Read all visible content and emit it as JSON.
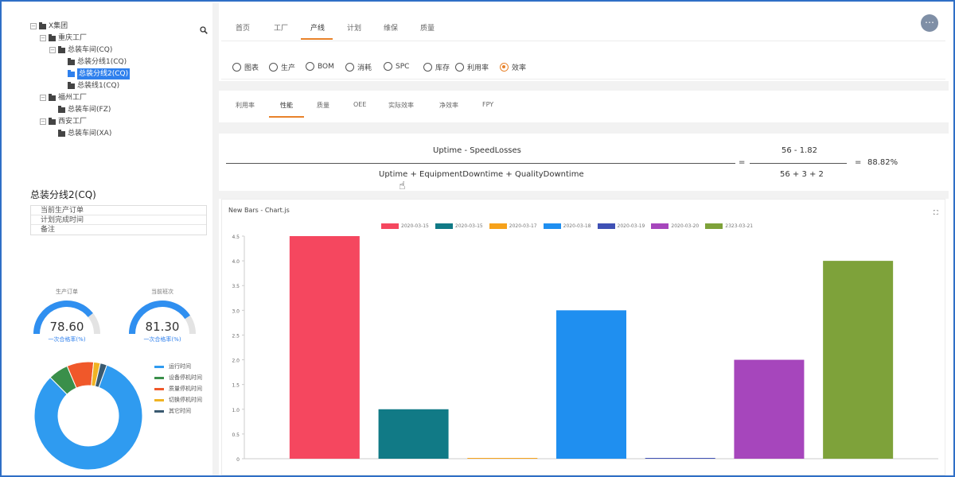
{
  "tree": [
    {
      "label": "X集团",
      "depth": 0,
      "toggle": "⊟"
    },
    {
      "label": "重庆工厂",
      "depth": 1,
      "toggle": "⊟"
    },
    {
      "label": "总装车间(CQ)",
      "depth": 2,
      "toggle": "⊟"
    },
    {
      "label": "总装分线1(CQ)",
      "depth": 3,
      "toggle": ""
    },
    {
      "label": "总装分线2(CQ)",
      "depth": 3,
      "toggle": "",
      "selected": true
    },
    {
      "label": "总装线1(CQ)",
      "depth": 3,
      "toggle": ""
    },
    {
      "label": "福州工厂",
      "depth": 1,
      "toggle": "⊟"
    },
    {
      "label": "总装车间(FZ)",
      "depth": 2,
      "toggle": ""
    },
    {
      "label": "西安工厂",
      "depth": 1,
      "toggle": "⊟"
    },
    {
      "label": "总装车间(XA)",
      "depth": 2,
      "toggle": ""
    }
  ],
  "left": {
    "line_title": "总装分线2(CQ)",
    "info_rows": [
      "当前生产订单",
      "计划完成时间",
      "备注"
    ],
    "gauges": [
      {
        "top_label": "生产订单",
        "value": "78.60",
        "bottom_label": "一次合格率(%)",
        "fraction": 0.786
      },
      {
        "top_label": "当前班次",
        "value": "81.30",
        "bottom_label": "一次合格率(%)",
        "fraction": 0.813
      }
    ],
    "donut_legend": [
      {
        "label": "运行时间",
        "color": "#2f9bf0"
      },
      {
        "label": "设备停机时间",
        "color": "#3a8f4a"
      },
      {
        "label": "质量停机时间",
        "color": "#f0582a"
      },
      {
        "label": "切换停机时间",
        "color": "#f0b323"
      },
      {
        "label": "其它时间",
        "color": "#3a5a70"
      }
    ],
    "donut_values": [
      82,
      6,
      8,
      2,
      2
    ]
  },
  "top_tabs": [
    "首页",
    "工厂",
    "产线",
    "计划",
    "维保",
    "质量"
  ],
  "top_tabs_active": 2,
  "radios": [
    {
      "label": "图表",
      "checked": false
    },
    {
      "label": "生产",
      "checked": false
    },
    {
      "label": "BOM",
      "checked": false
    },
    {
      "label": "消耗",
      "checked": false
    },
    {
      "label": "SPC",
      "checked": false
    },
    {
      "label": "库存",
      "checked": false
    },
    {
      "label": "利用率",
      "checked": false
    },
    {
      "label": "效率",
      "checked": true
    }
  ],
  "sub_tabs": [
    "利用率",
    "性能",
    "质量",
    "OEE",
    "实际效率",
    "净效率",
    "FPY"
  ],
  "sub_tabs_active": 1,
  "formula": {
    "numerator_text": "Uptime - SpeedLosses",
    "denominator_text": "Uptime + EquipmentDowntime + QualityDowntime",
    "eq1": "=",
    "numerator_val": "56 - 1.82",
    "denominator_val": "56 + 3 + 2",
    "eq2": "=",
    "result": "88.82%"
  },
  "chart_card": {
    "title": "New Bars - Chart.js",
    "expand_icon": "⛶"
  },
  "chart_data": {
    "type": "bar",
    "title": "New Bars - Chart.js",
    "series": [
      {
        "name": "2020-03-15",
        "value": 4.5,
        "color": "#f5475f"
      },
      {
        "name": "2020-03-15",
        "value": 1.0,
        "color": "#117a86"
      },
      {
        "name": "2020-03-17",
        "value": 0.0,
        "color": "#f6a21b"
      },
      {
        "name": "2020-03-18",
        "value": 3.0,
        "color": "#1f8ff0"
      },
      {
        "name": "2020-03-19",
        "value": 0.0,
        "color": "#3f51b5"
      },
      {
        "name": "2020-03-20",
        "value": 2.0,
        "color": "#a646bc"
      },
      {
        "name": "2323-03-21",
        "value": 4.0,
        "color": "#7ea23a"
      }
    ],
    "ylim": [
      0,
      4.5
    ],
    "yticks": [
      "0",
      "0.5",
      "1.0",
      "1.5",
      "2.0",
      "2.5",
      "3.0",
      "3.5",
      "4.0",
      "4.5"
    ],
    "grid": false,
    "legend": "top"
  }
}
